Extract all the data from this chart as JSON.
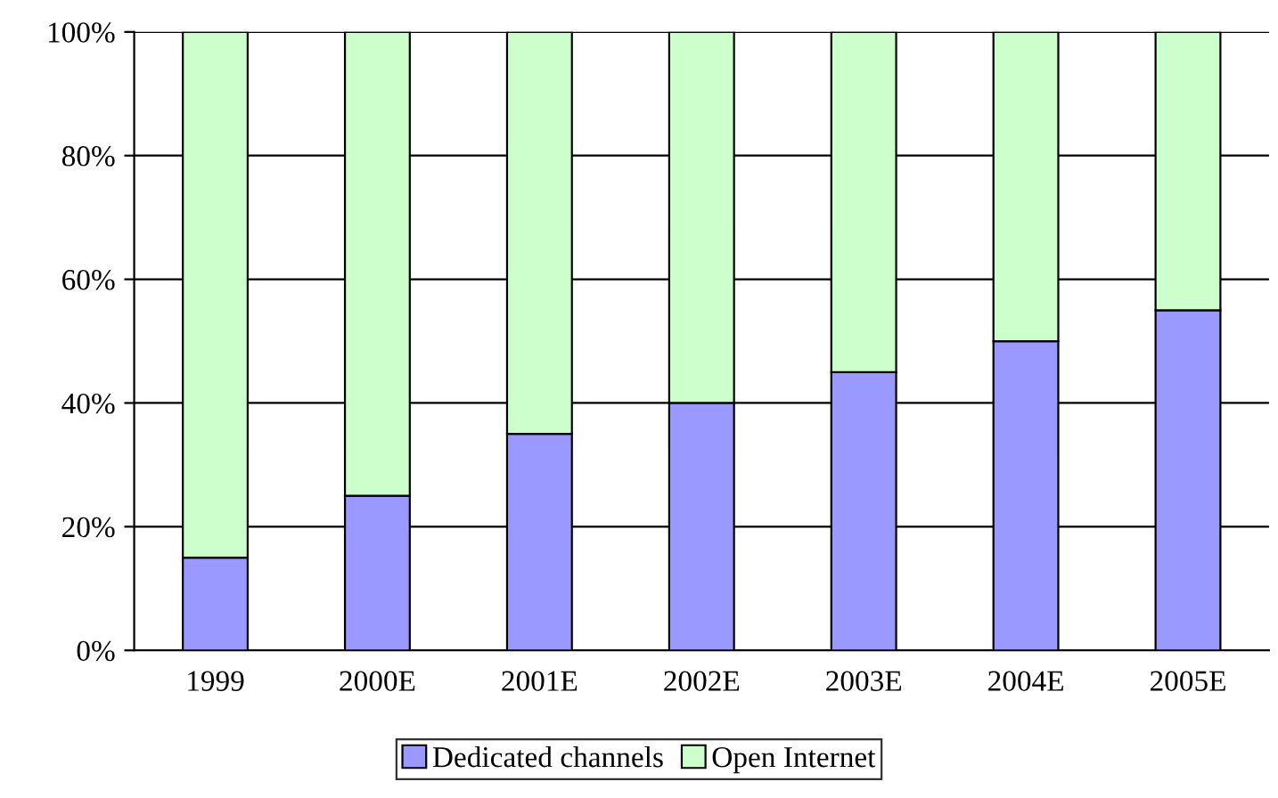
{
  "chart_data": {
    "type": "bar",
    "stacked": true,
    "categories": [
      "1999",
      "2000E",
      "2001E",
      "2002E",
      "2003E",
      "2004E",
      "2005E"
    ],
    "series": [
      {
        "name": "Dedicated channels",
        "color": "#9999ff",
        "values": [
          15,
          25,
          35,
          40,
          45,
          50,
          55
        ]
      },
      {
        "name": "Open Internet",
        "color": "#ccffcc",
        "values": [
          85,
          75,
          65,
          60,
          55,
          50,
          45
        ]
      }
    ],
    "ylim": [
      0,
      100
    ],
    "yticks": [
      {
        "value": 0,
        "label": "0%"
      },
      {
        "value": 20,
        "label": "20%"
      },
      {
        "value": 40,
        "label": "40%"
      },
      {
        "value": 60,
        "label": "60%"
      },
      {
        "value": 80,
        "label": "80%"
      },
      {
        "value": 100,
        "label": "100%"
      }
    ],
    "grid": "y",
    "legend": "bottom"
  }
}
